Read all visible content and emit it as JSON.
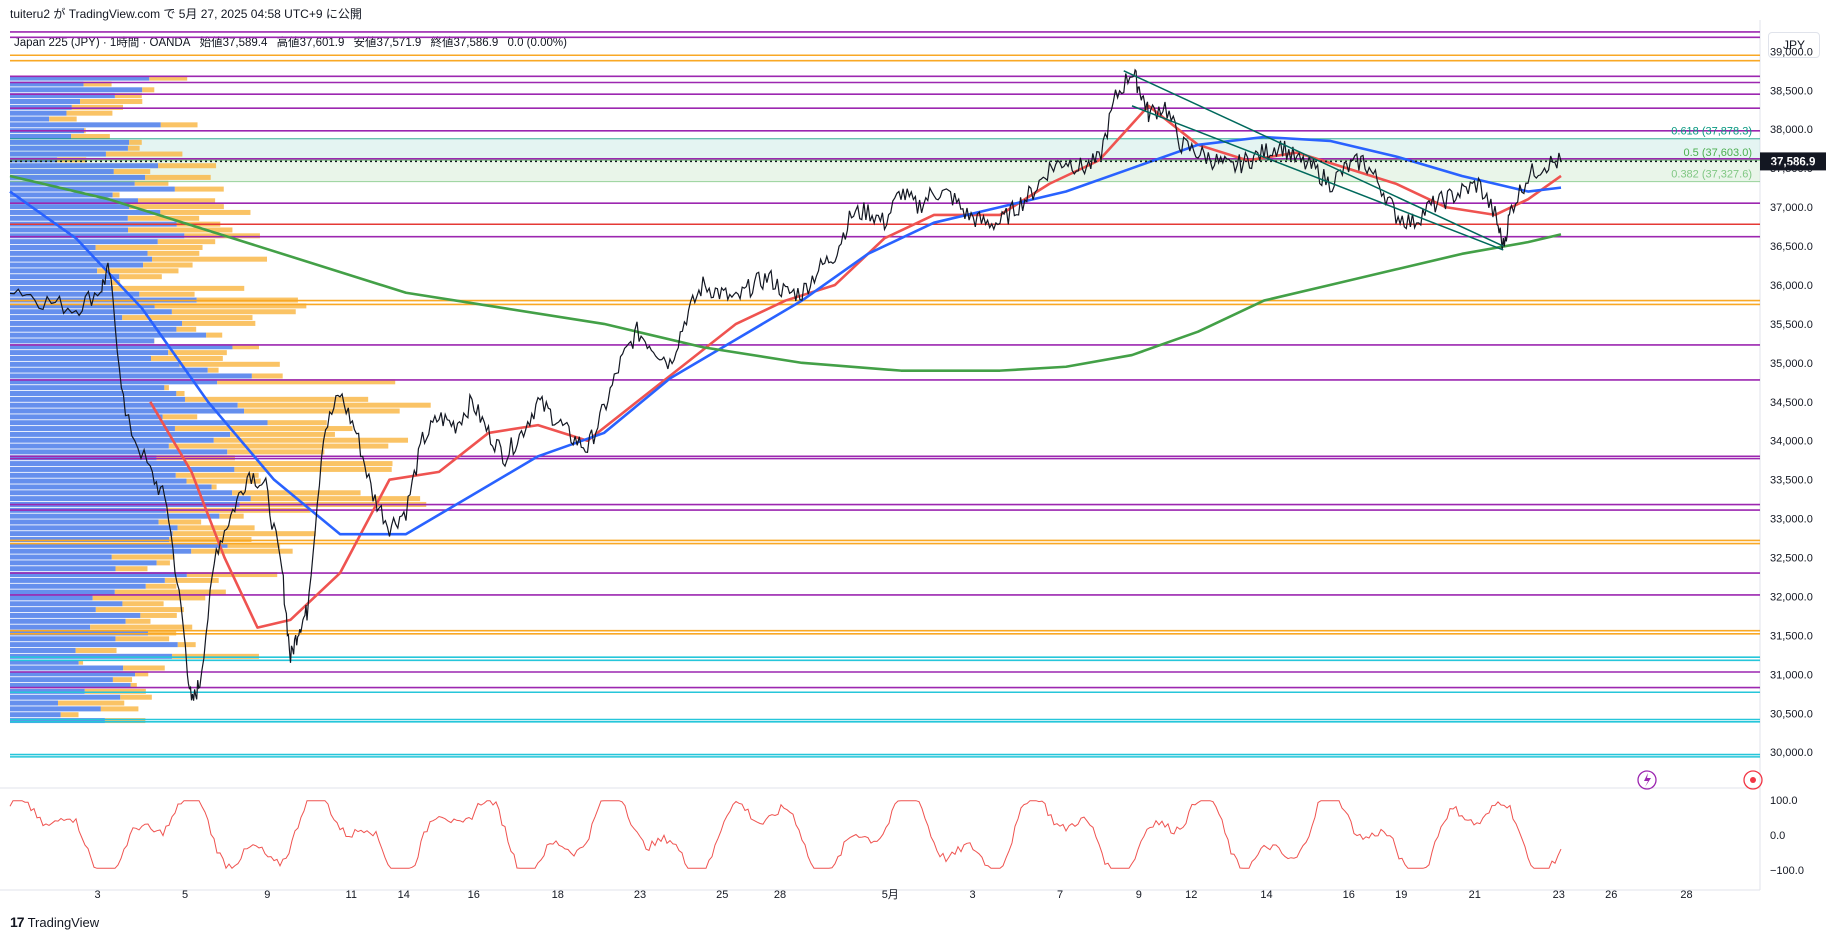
{
  "header": {
    "published_line": "tuiteru2 が TradingView.com で 5月 27, 2025 04:58 UTC+9 に公開"
  },
  "symbol_bar": {
    "title": "Japan 225 (JPY) · 1時間 · OANDA",
    "open": "始値37,589.4",
    "high": "高値37,601.9",
    "low": "安値37,571.9",
    "close": "終値37,586.9",
    "change": "0.0 (0.00%)"
  },
  "currency_label": "JPY",
  "footer": {
    "logo_text": "TradingView",
    "logo_mark": "17"
  },
  "chart_data": {
    "type": "line",
    "title": "Japan 225 (JPY) · 1時間 · OANDA",
    "ylim": [
      29900,
      39300
    ],
    "y_ticks": [
      "39,000.0",
      "38,500.0",
      "38,000.0",
      "37,500.0",
      "37,000.0",
      "36,500.0",
      "36,000.0",
      "35,500.0",
      "35,000.0",
      "34,500.0",
      "34,000.0",
      "33,500.0",
      "33,000.0",
      "32,500.0",
      "32,000.0",
      "31,500.0",
      "31,000.0",
      "30,500.0",
      "30,000.0"
    ],
    "y_tick_values": [
      39000,
      38500,
      38000,
      37500,
      37000,
      36500,
      36000,
      35500,
      35000,
      34500,
      34000,
      33500,
      33000,
      32500,
      32000,
      31500,
      31000,
      30500,
      30000
    ],
    "x_ticks": [
      "3",
      "5",
      "9",
      "11",
      "14",
      "16",
      "18",
      "23",
      "25",
      "28",
      "5月",
      "3",
      "7",
      "9",
      "12",
      "14",
      "16",
      "19",
      "21",
      "23",
      "26",
      "28"
    ],
    "x_tick_positions": [
      0.05,
      0.1,
      0.147,
      0.195,
      0.225,
      0.265,
      0.313,
      0.36,
      0.407,
      0.44,
      0.503,
      0.55,
      0.6,
      0.645,
      0.675,
      0.718,
      0.765,
      0.795,
      0.837,
      0.885,
      0.915,
      0.958
    ],
    "last_price_label": "37,586.9",
    "last_price": 37586.9,
    "fib_levels": [
      {
        "label": "0.618 (37,878.3)",
        "value": 37878.3,
        "color": "#089981"
      },
      {
        "label": "0.5 (37,603.0)",
        "value": 37603.0,
        "color": "#4caf50"
      },
      {
        "label": "0.382 (37,327.6)",
        "value": 37327.6,
        "color": "#81c784"
      }
    ],
    "horizontal_levels": [
      {
        "value": 39250,
        "color": "#9c27b0"
      },
      {
        "value": 39180,
        "color": "#9c27b0"
      },
      {
        "value": 38950,
        "color": "#f9a825"
      },
      {
        "value": 38880,
        "color": "#f9a825"
      },
      {
        "value": 38680,
        "color": "#9c27b0"
      },
      {
        "value": 38600,
        "color": "#9c27b0"
      },
      {
        "value": 38450,
        "color": "#9c27b0"
      },
      {
        "value": 38270,
        "color": "#9c27b0"
      },
      {
        "value": 37980,
        "color": "#9c27b0"
      },
      {
        "value": 37620,
        "color": "#9c27b0"
      },
      {
        "value": 37050,
        "color": "#9c27b0"
      },
      {
        "value": 36780,
        "color": "#e53935"
      },
      {
        "value": 36620,
        "color": "#9c27b0"
      },
      {
        "value": 35800,
        "color": "#f9a825"
      },
      {
        "value": 35750,
        "color": "#f9a825"
      },
      {
        "value": 35230,
        "color": "#9c27b0"
      },
      {
        "value": 34780,
        "color": "#9c27b0"
      },
      {
        "value": 33800,
        "color": "#9c27b0"
      },
      {
        "value": 33770,
        "color": "#9c27b0"
      },
      {
        "value": 33180,
        "color": "#9c27b0"
      },
      {
        "value": 33110,
        "color": "#9c27b0"
      },
      {
        "value": 32720,
        "color": "#f9a825"
      },
      {
        "value": 32680,
        "color": "#f9a825"
      },
      {
        "value": 32300,
        "color": "#9c27b0"
      },
      {
        "value": 32020,
        "color": "#9c27b0"
      },
      {
        "value": 31560,
        "color": "#f9a825"
      },
      {
        "value": 31520,
        "color": "#f9a825"
      },
      {
        "value": 31220,
        "color": "#26c6da"
      },
      {
        "value": 31180,
        "color": "#26c6da"
      },
      {
        "value": 31030,
        "color": "#9c27b0"
      },
      {
        "value": 30830,
        "color": "#9c27b0"
      },
      {
        "value": 30770,
        "color": "#26c6da"
      },
      {
        "value": 30420,
        "color": "#26c6da"
      },
      {
        "value": 30390,
        "color": "#26c6da"
      },
      {
        "value": 29970,
        "color": "#26c6da"
      },
      {
        "value": 29940,
        "color": "#26c6da"
      }
    ],
    "price_series": {
      "name": "",
      "x": [
        0,
        0.02,
        0.04,
        0.055,
        0.06,
        0.07,
        0.085,
        0.095,
        0.105,
        0.11,
        0.115,
        0.125,
        0.135,
        0.145,
        0.155,
        0.165,
        0.17,
        0.175,
        0.18,
        0.19,
        0.2,
        0.21,
        0.22,
        0.23,
        0.24,
        0.25,
        0.26,
        0.27,
        0.28,
        0.29,
        0.3,
        0.31,
        0.32,
        0.33,
        0.34,
        0.35,
        0.36,
        0.37,
        0.38,
        0.39,
        0.4,
        0.41,
        0.42,
        0.43,
        0.44,
        0.45,
        0.46,
        0.47,
        0.48,
        0.49,
        0.5,
        0.51,
        0.52,
        0.53,
        0.54,
        0.55,
        0.56,
        0.57,
        0.58,
        0.59,
        0.6,
        0.61,
        0.62,
        0.63,
        0.64,
        0.65,
        0.66,
        0.67,
        0.68,
        0.685,
        0.69,
        0.7,
        0.71,
        0.72,
        0.73,
        0.74,
        0.75,
        0.76,
        0.77,
        0.78,
        0.79,
        0.8,
        0.81,
        0.82,
        0.83,
        0.84,
        0.85,
        0.86,
        0.87,
        0.88,
        0.89,
        0.9,
        0.905,
        0.91,
        0.92,
        0.93,
        0.94
      ],
      "y": [
        36000,
        35800,
        35700,
        35950,
        36200,
        34300,
        33600,
        33200,
        31600,
        30600,
        30900,
        32600,
        33100,
        33600,
        33400,
        32300,
        31200,
        31600,
        31800,
        34100,
        34600,
        34100,
        33300,
        32900,
        33100,
        34000,
        34300,
        34200,
        34500,
        34100,
        33800,
        34100,
        34500,
        34300,
        34050,
        33900,
        34400,
        35000,
        35400,
        35200,
        35000,
        35600,
        36000,
        35900,
        35800,
        36000,
        36100,
        35900,
        35900,
        36200,
        36400,
        36900,
        36950,
        36800,
        37200,
        37000,
        37200,
        37150,
        36900,
        36800,
        36800,
        37000,
        37200,
        37500,
        37600,
        37500,
        37600,
        38400,
        38750,
        38500,
        38200,
        38300,
        37800,
        37700,
        37600,
        37500,
        37600,
        37700,
        37800,
        37600,
        37500,
        37300,
        37500,
        37600,
        37300,
        36900,
        36800,
        37000,
        37100,
        37200,
        37300,
        36900,
        36500,
        37000,
        37400,
        37550,
        37586.9
      ]
    },
    "series": [
      {
        "name": "",
        "color": "#ef5350",
        "values_x": [
          0.085,
          0.11,
          0.13,
          0.15,
          0.17,
          0.2,
          0.23,
          0.26,
          0.29,
          0.32,
          0.35,
          0.38,
          0.41,
          0.44,
          0.47,
          0.5,
          0.53,
          0.56,
          0.6,
          0.63,
          0.66,
          0.69,
          0.72,
          0.75,
          0.78,
          0.81,
          0.84,
          0.87,
          0.9,
          0.92,
          0.94
        ],
        "values": [
          34500,
          33600,
          32500,
          31600,
          31700,
          32300,
          33500,
          33600,
          34100,
          34200,
          34000,
          34500,
          35000,
          35500,
          35800,
          36000,
          36600,
          36900,
          36900,
          37300,
          37600,
          38300,
          37800,
          37600,
          37700,
          37500,
          37300,
          37000,
          36900,
          37100,
          37400
        ]
      },
      {
        "name": "",
        "color": "#2962ff",
        "values_x": [
          0,
          0.04,
          0.08,
          0.12,
          0.16,
          0.2,
          0.24,
          0.28,
          0.32,
          0.36,
          0.4,
          0.44,
          0.48,
          0.52,
          0.56,
          0.6,
          0.64,
          0.68,
          0.72,
          0.76,
          0.8,
          0.84,
          0.88,
          0.92,
          0.94
        ],
        "values": [
          37200,
          36600,
          35700,
          34500,
          33500,
          32800,
          32800,
          33300,
          33800,
          34100,
          34800,
          35300,
          35800,
          36400,
          36800,
          37000,
          37200,
          37500,
          37800,
          37900,
          37850,
          37650,
          37400,
          37200,
          37250
        ]
      },
      {
        "name": "",
        "color": "#43a047",
        "values_x": [
          0,
          0.06,
          0.12,
          0.18,
          0.24,
          0.3,
          0.36,
          0.42,
          0.48,
          0.54,
          0.6,
          0.64,
          0.68,
          0.72,
          0.76,
          0.8,
          0.84,
          0.88,
          0.92,
          0.94
        ],
        "values": [
          37400,
          37100,
          36700,
          36300,
          35900,
          35700,
          35500,
          35200,
          35000,
          34900,
          34900,
          34950,
          35100,
          35400,
          35800,
          36000,
          36200,
          36400,
          36550,
          36650
        ]
      }
    ],
    "oscillator": {
      "name": "",
      "ylim": [
        -100,
        100
      ],
      "ticks": [
        "100.0",
        "0.0",
        "−100.0"
      ],
      "tick_values": [
        100,
        0,
        -100
      ],
      "color": "#ef5350"
    },
    "legend": "none",
    "grid": false
  },
  "colors": {
    "up_volume": "#f9b94a",
    "down_volume": "#4a7bea",
    "price_line": "#131722",
    "last_price_bg": "#131722"
  }
}
